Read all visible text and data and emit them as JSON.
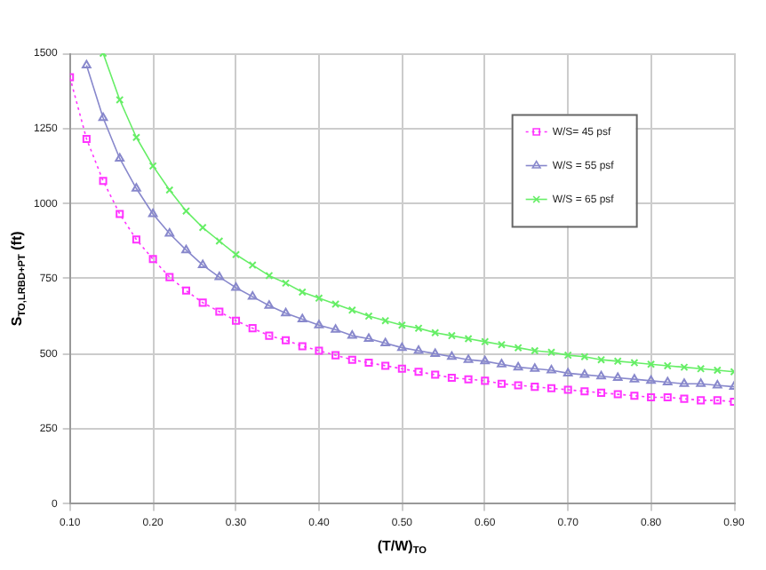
{
  "chart_data": {
    "type": "line",
    "xlabel": "(T/W)$_{TO}$",
    "ylabel": "S$_{TO,LRBD+PT}$ (ft)",
    "x": [
      0.1,
      0.12,
      0.14,
      0.16,
      0.18,
      0.2,
      0.22,
      0.24,
      0.26,
      0.28,
      0.3,
      0.32,
      0.34,
      0.36,
      0.38,
      0.4,
      0.42,
      0.44,
      0.46,
      0.48,
      0.5,
      0.52,
      0.54,
      0.56,
      0.58,
      0.6,
      0.62,
      0.64,
      0.66,
      0.68,
      0.7,
      0.72,
      0.74,
      0.76,
      0.78,
      0.8,
      0.82,
      0.84,
      0.86,
      0.88,
      0.9
    ],
    "series": [
      {
        "name": "W/S= 45 psf",
        "color": "#ff33ff",
        "marker": "square",
        "line_style": "dotted",
        "values": [
          1420,
          1215,
          1075,
          965,
          880,
          815,
          755,
          710,
          670,
          640,
          610,
          585,
          560,
          545,
          525,
          510,
          495,
          480,
          470,
          460,
          450,
          440,
          430,
          420,
          415,
          410,
          400,
          395,
          390,
          385,
          380,
          375,
          370,
          365,
          360,
          355,
          355,
          350,
          345,
          345,
          340
        ]
      },
      {
        "name": "W/S = 55 psf",
        "color": "#8888cc",
        "marker": "triangle",
        "line_style": "solid",
        "values": [
          null,
          1460,
          1285,
          1150,
          1050,
          965,
          900,
          845,
          795,
          755,
          720,
          690,
          660,
          635,
          615,
          595,
          580,
          560,
          550,
          535,
          520,
          510,
          500,
          490,
          480,
          475,
          465,
          455,
          450,
          445,
          435,
          430,
          425,
          420,
          415,
          410,
          405,
          400,
          400,
          395,
          390
        ]
      },
      {
        "name": "W/S = 65 psf",
        "color": "#66ee66",
        "marker": "cross",
        "line_style": "solid",
        "values": [
          null,
          null,
          1500,
          1345,
          1220,
          1125,
          1045,
          975,
          920,
          875,
          830,
          795,
          760,
          735,
          705,
          685,
          665,
          645,
          625,
          610,
          595,
          585,
          570,
          560,
          550,
          540,
          530,
          520,
          510,
          505,
          495,
          490,
          480,
          475,
          470,
          465,
          460,
          455,
          450,
          445,
          440
        ]
      }
    ],
    "xlim": [
      0.1,
      0.9
    ],
    "xticks": [
      {
        "value": 0.1,
        "label": "0.10"
      },
      {
        "value": 0.2,
        "label": "0.20"
      },
      {
        "value": 0.3,
        "label": "0.30"
      },
      {
        "value": 0.4,
        "label": "0.40"
      },
      {
        "value": 0.5,
        "label": "0.50"
      },
      {
        "value": 0.6,
        "label": "0.60"
      },
      {
        "value": 0.7,
        "label": "0.70"
      },
      {
        "value": 0.8,
        "label": "0.80"
      },
      {
        "value": 0.9,
        "label": "0.90"
      }
    ],
    "ylim": [
      0,
      1500
    ],
    "yticks": [
      0,
      250,
      500,
      750,
      1000,
      1250,
      1500
    ],
    "grid": true,
    "legend": "top right"
  }
}
